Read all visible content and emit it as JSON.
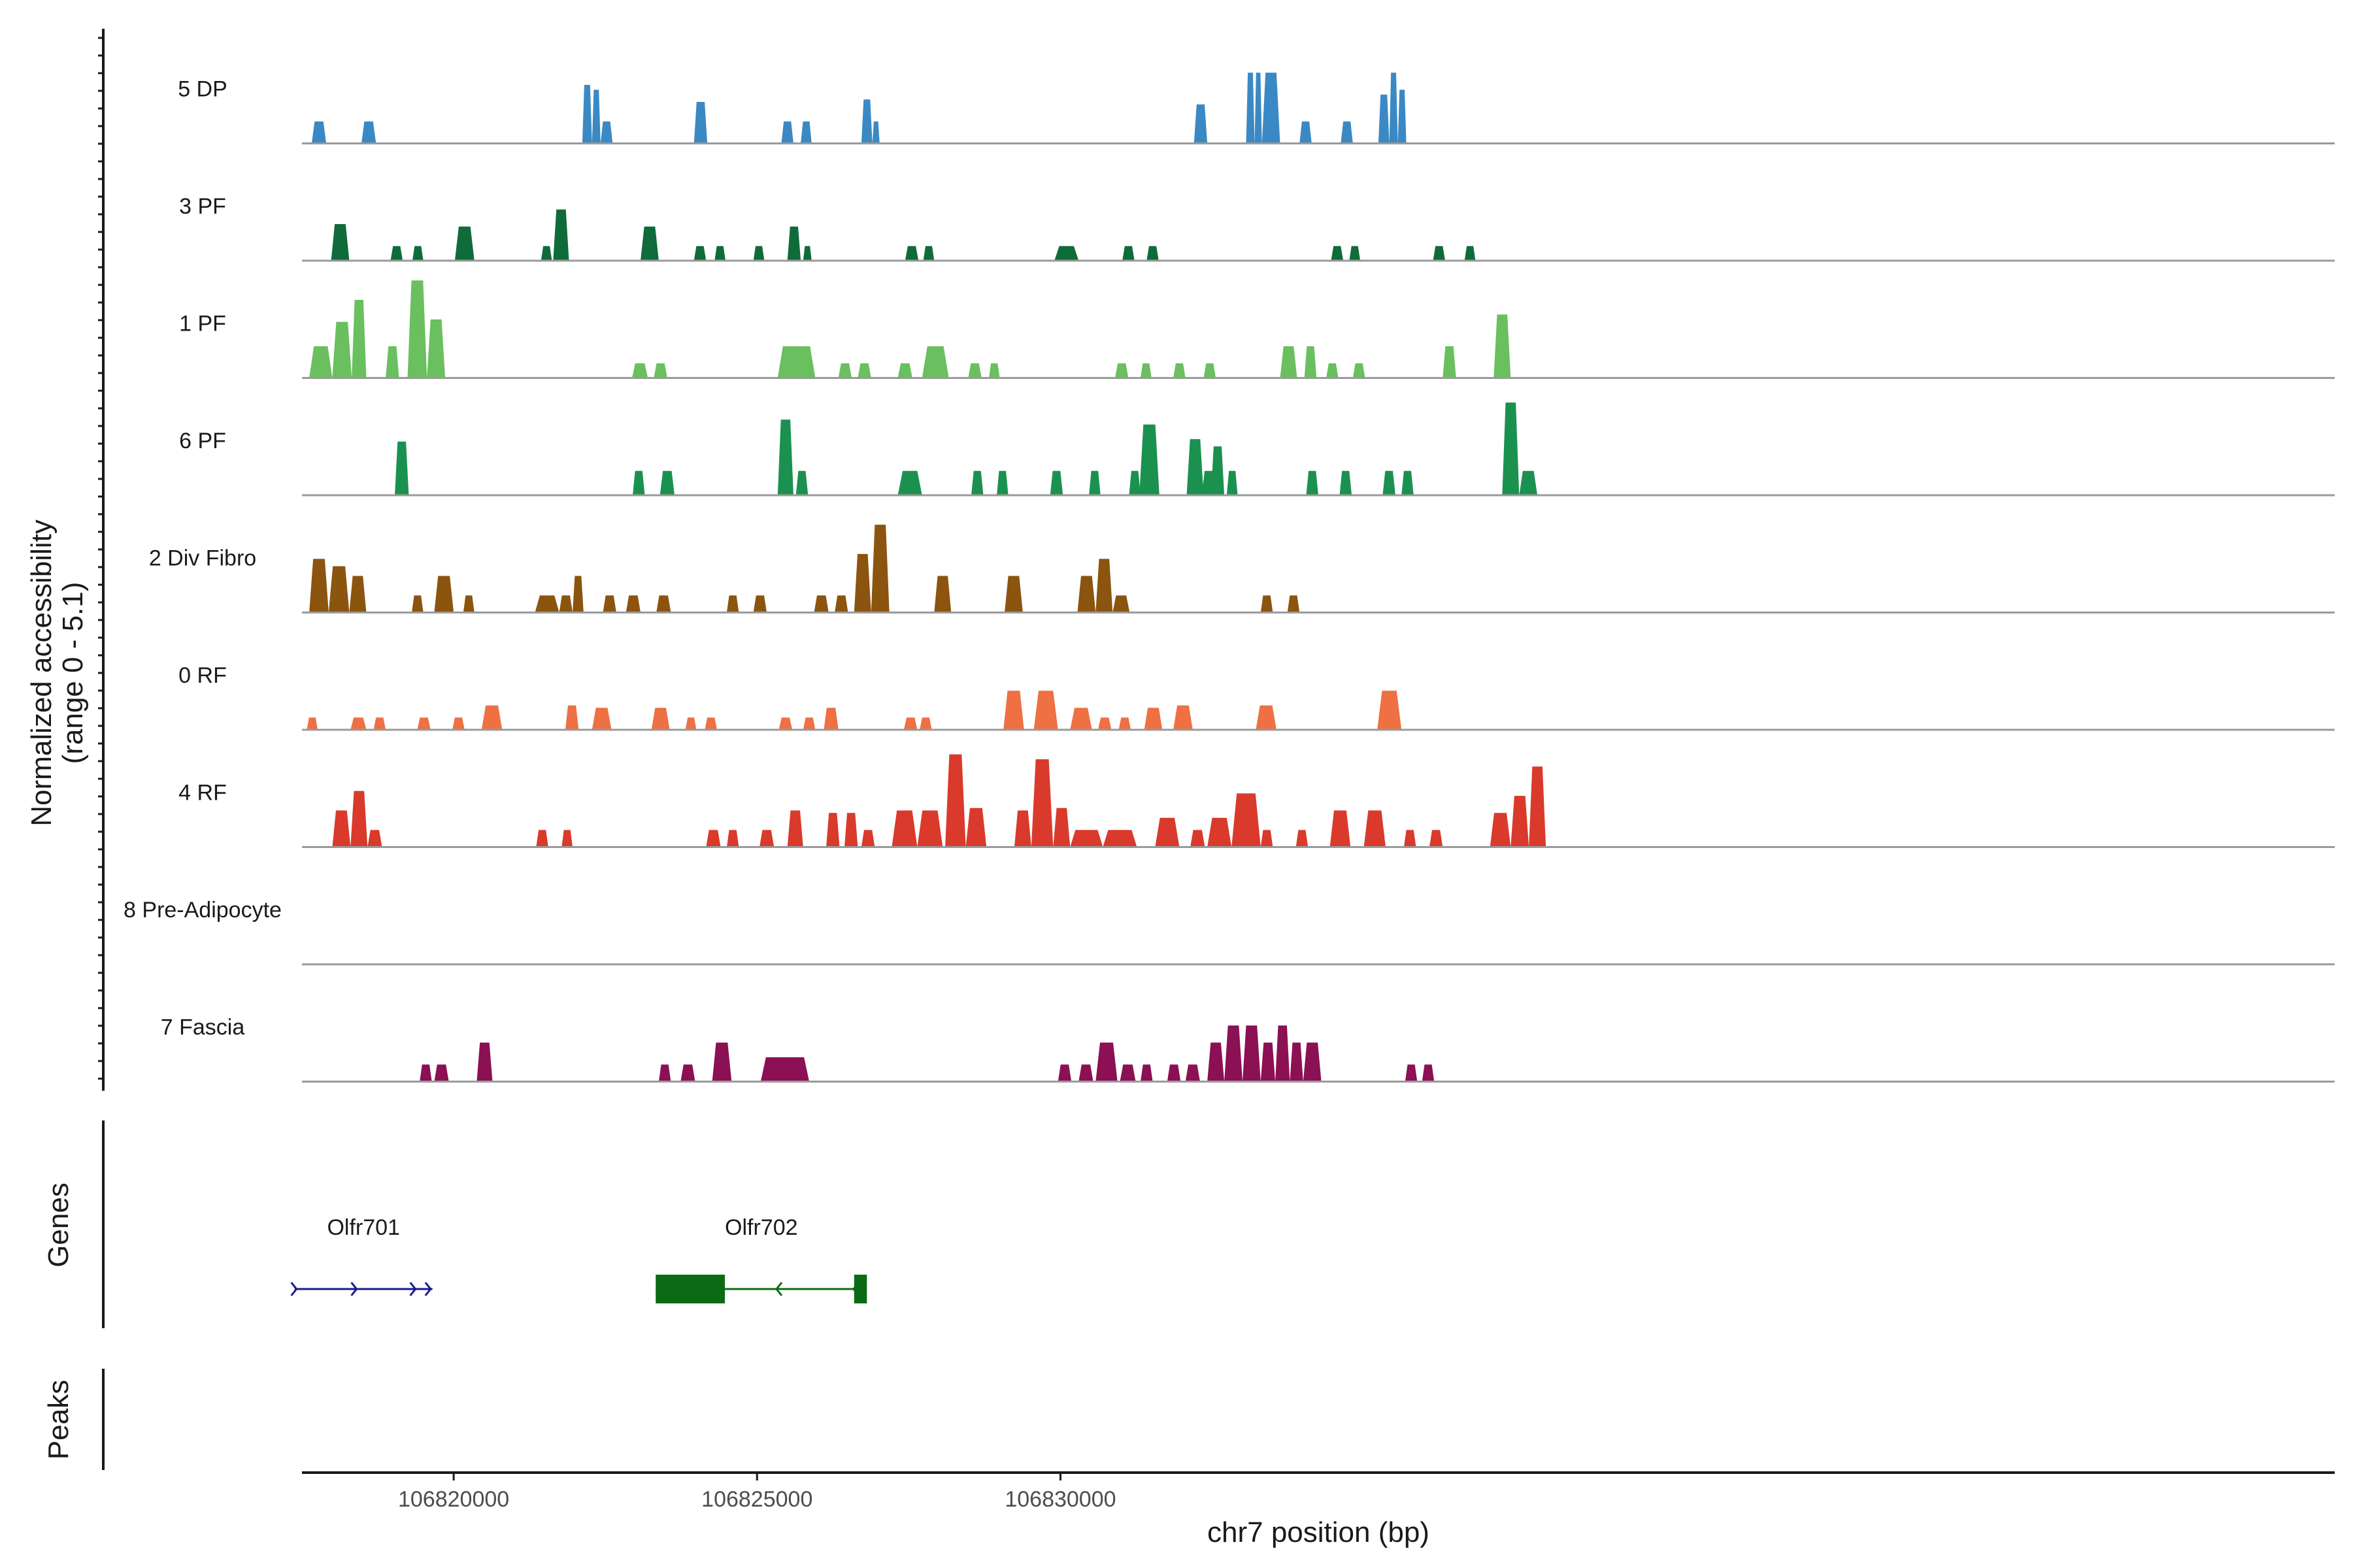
{
  "chart_data": {
    "type": "area",
    "title": "",
    "xlabel": "chr7 position (bp)",
    "ylabel": "Normalized accessibility",
    "ylabel_sub": "(range 0 - 5.1)",
    "xlim": [
      106817500,
      106851000
    ],
    "ylim": [
      0,
      5.1
    ],
    "x_ticks": [
      106820000,
      106825000,
      106830000
    ],
    "x_tick_labels": [
      "106820000",
      "106825000",
      "106830000"
    ],
    "tracks": [
      {
        "name": "5 DP",
        "color": "#3b89c4",
        "peaks": [
          [
            106817660,
            106817900,
            0.9
          ],
          [
            106818480,
            106818720,
            0.9
          ],
          [
            106822120,
            106822280,
            2.4
          ],
          [
            106822280,
            106822420,
            2.2
          ],
          [
            106822420,
            106822620,
            0.9
          ],
          [
            106823960,
            106824180,
            1.7
          ],
          [
            106825400,
            106825600,
            0.9
          ],
          [
            106825720,
            106825900,
            0.9
          ],
          [
            106826720,
            106826900,
            1.8
          ],
          [
            106826900,
            106827020,
            0.9
          ],
          [
            106832200,
            106832420,
            1.6
          ],
          [
            106833060,
            106833200,
            2.9
          ],
          [
            106833200,
            106833320,
            2.9
          ],
          [
            106833320,
            106833620,
            2.9
          ],
          [
            106833940,
            106834140,
            0.9
          ],
          [
            106834620,
            106834820,
            0.9
          ],
          [
            106835240,
            106835420,
            2.0
          ],
          [
            106835420,
            106835560,
            2.9
          ],
          [
            106835560,
            106835700,
            2.2
          ]
        ]
      },
      {
        "name": "3 PF",
        "color": "#0f6b3a",
        "peaks": [
          [
            106817980,
            106818280,
            1.5
          ],
          [
            106818960,
            106819160,
            0.6
          ],
          [
            106819320,
            106819500,
            0.6
          ],
          [
            106820020,
            106820340,
            1.4
          ],
          [
            106821440,
            106821620,
            0.6
          ],
          [
            106821640,
            106821900,
            2.1
          ],
          [
            106823080,
            106823380,
            1.4
          ],
          [
            106823960,
            106824160,
            0.6
          ],
          [
            106824300,
            106824480,
            0.6
          ],
          [
            106824940,
            106825120,
            0.6
          ],
          [
            106825500,
            106825720,
            1.4
          ],
          [
            106825760,
            106825900,
            0.6
          ],
          [
            106827440,
            106827660,
            0.6
          ],
          [
            106827740,
            106827920,
            0.6
          ],
          [
            106829900,
            106830300,
            0.6
          ],
          [
            106831020,
            106831220,
            0.6
          ],
          [
            106831420,
            106831620,
            0.6
          ],
          [
            106834460,
            106834660,
            0.6
          ],
          [
            106834760,
            106834940,
            0.6
          ],
          [
            106836140,
            106836340,
            0.6
          ],
          [
            106836660,
            106836840,
            0.6
          ]
        ]
      },
      {
        "name": "1 PF",
        "color": "#6abf5f",
        "peaks": [
          [
            106817620,
            106818000,
            1.3
          ],
          [
            106818000,
            106818320,
            2.3
          ],
          [
            106818320,
            106818560,
            3.2
          ],
          [
            106818880,
            106819100,
            1.3
          ],
          [
            106819240,
            106819560,
            4.0
          ],
          [
            106819560,
            106819860,
            2.4
          ],
          [
            106822940,
            106823200,
            0.6
          ],
          [
            106823300,
            106823520,
            0.6
          ],
          [
            106825340,
            106825960,
            1.3
          ],
          [
            106826340,
            106826560,
            0.6
          ],
          [
            106826660,
            106826880,
            0.6
          ],
          [
            106827320,
            106827560,
            0.6
          ],
          [
            106827720,
            106828160,
            1.3
          ],
          [
            106828480,
            106828700,
            0.6
          ],
          [
            106828820,
            106829000,
            0.6
          ],
          [
            106830900,
            106831120,
            0.6
          ],
          [
            106831320,
            106831500,
            0.6
          ],
          [
            106831860,
            106832060,
            0.6
          ],
          [
            106832360,
            106832560,
            0.6
          ],
          [
            106833620,
            106833900,
            1.3
          ],
          [
            106834020,
            106834220,
            1.3
          ],
          [
            106834380,
            106834580,
            0.6
          ],
          [
            106834820,
            106835020,
            0.6
          ],
          [
            106836300,
            106836520,
            1.3
          ],
          [
            106837140,
            106837420,
            2.6
          ]
        ]
      },
      {
        "name": "6 PF",
        "color": "#1b9150",
        "peaks": [
          [
            106819030,
            106819260,
            2.2
          ],
          [
            106822950,
            106823150,
            1.0
          ],
          [
            106823400,
            106823640,
            1.0
          ],
          [
            106825340,
            106825600,
            3.1
          ],
          [
            106825640,
            106825840,
            1.0
          ],
          [
            106827320,
            106827720,
            1.0
          ],
          [
            106828530,
            106828730,
            1.0
          ],
          [
            106828950,
            106829140,
            1.0
          ],
          [
            106829830,
            106830040,
            1.0
          ],
          [
            106830470,
            106830660,
            1.0
          ],
          [
            106831130,
            106831320,
            1.0
          ],
          [
            106832330,
            106832560,
            1.0
          ],
          [
            106832740,
            106832920,
            1.0
          ],
          [
            106834050,
            106834250,
            1.0
          ],
          [
            106834600,
            106834800,
            1.0
          ],
          [
            106835310,
            106835520,
            1.0
          ],
          [
            106835620,
            106835820,
            1.0
          ],
          [
            106831300,
            106831630,
            2.9
          ],
          [
            106832080,
            106832360,
            2.3
          ],
          [
            106832480,
            106832700,
            2.0
          ],
          [
            106837280,
            106837560,
            3.8
          ],
          [
            106837560,
            106837860,
            1.0
          ]
        ]
      },
      {
        "name": "2 Div Fibro",
        "color": "#8b540f",
        "peaks": [
          [
            106817620,
            106817940,
            2.2
          ],
          [
            106817940,
            106818280,
            1.9
          ],
          [
            106818280,
            106818560,
            1.5
          ],
          [
            106819310,
            106819500,
            0.7
          ],
          [
            106819680,
            106820000,
            1.5
          ],
          [
            106820160,
            106820340,
            0.7
          ],
          [
            106821340,
            106821740,
            0.7
          ],
          [
            106821740,
            106821960,
            0.7
          ],
          [
            106821960,
            106822140,
            1.5
          ],
          [
            106822460,
            106822680,
            0.7
          ],
          [
            106822840,
            106823080,
            0.7
          ],
          [
            106823340,
            106823580,
            0.7
          ],
          [
            106824500,
            106824700,
            0.7
          ],
          [
            106824940,
            106825160,
            0.7
          ],
          [
            106825940,
            106826180,
            0.7
          ],
          [
            106826280,
            106826500,
            0.7
          ],
          [
            106826600,
            106826880,
            2.4
          ],
          [
            106826880,
            106827180,
            3.6
          ],
          [
            106827920,
            106828200,
            1.5
          ],
          [
            106829080,
            106829380,
            1.5
          ],
          [
            106830280,
            106830580,
            1.5
          ],
          [
            106830580,
            106830860,
            2.2
          ],
          [
            106830860,
            106831140,
            0.7
          ],
          [
            106833300,
            106833500,
            0.7
          ],
          [
            106833740,
            106833940,
            0.7
          ]
        ]
      },
      {
        "name": "0 RF",
        "color": "#ee7043",
        "peaks": [
          [
            106817580,
            106817760,
            0.5
          ],
          [
            106818300,
            106818560,
            0.5
          ],
          [
            106818680,
            106818880,
            0.5
          ],
          [
            106819400,
            106819620,
            0.5
          ],
          [
            106819980,
            106820180,
            0.5
          ],
          [
            106820460,
            106820800,
            1.0
          ],
          [
            106821840,
            106822060,
            1.0
          ],
          [
            106822280,
            106822600,
            0.9
          ],
          [
            106823260,
            106823560,
            0.9
          ],
          [
            106823820,
            106824000,
            0.5
          ],
          [
            106824140,
            106824340,
            0.5
          ],
          [
            106825360,
            106825580,
            0.5
          ],
          [
            106825760,
            106825960,
            0.5
          ],
          [
            106826100,
            106826340,
            0.9
          ],
          [
            106827420,
            106827640,
            0.5
          ],
          [
            106827680,
            106827880,
            0.5
          ],
          [
            106829060,
            106829400,
            1.6
          ],
          [
            106829560,
            106829960,
            1.6
          ],
          [
            106830160,
            106830520,
            0.9
          ],
          [
            106830620,
            106830840,
            0.5
          ],
          [
            106830960,
            106831160,
            0.5
          ],
          [
            106831380,
            106831680,
            0.9
          ],
          [
            106831860,
            106832180,
            1.0
          ],
          [
            106833220,
            106833560,
            1.0
          ],
          [
            106835220,
            106835620,
            1.6
          ]
        ]
      },
      {
        "name": "4 RF",
        "color": "#d93a2b",
        "peaks": [
          [
            106818000,
            106818300,
            1.5
          ],
          [
            106818300,
            106818580,
            2.3
          ],
          [
            106818580,
            106818820,
            0.7
          ],
          [
            106821360,
            106821560,
            0.7
          ],
          [
            106821780,
            106821960,
            0.7
          ],
          [
            106824160,
            106824400,
            0.7
          ],
          [
            106824500,
            106824700,
            0.7
          ],
          [
            106825040,
            106825280,
            0.7
          ],
          [
            106825500,
            106825760,
            1.5
          ],
          [
            106826140,
            106826360,
            1.4
          ],
          [
            106826440,
            106826660,
            1.4
          ],
          [
            106826720,
            106826940,
            0.7
          ],
          [
            106827220,
            106827640,
            1.5
          ],
          [
            106827640,
            106828060,
            1.5
          ],
          [
            106828100,
            106828440,
            3.8
          ],
          [
            106828440,
            106828780,
            1.6
          ],
          [
            106829240,
            106829520,
            1.5
          ],
          [
            106829520,
            106829880,
            3.6
          ],
          [
            106829880,
            106830160,
            1.6
          ],
          [
            106830160,
            106830700,
            0.7
          ],
          [
            106830700,
            106831260,
            0.7
          ],
          [
            106831560,
            106831960,
            1.2
          ],
          [
            106832140,
            106832380,
            0.7
          ],
          [
            106832420,
            106832820,
            1.2
          ],
          [
            106832820,
            106833300,
            2.2
          ],
          [
            106833300,
            106833500,
            0.7
          ],
          [
            106833880,
            106834080,
            0.7
          ],
          [
            106834440,
            106834780,
            1.5
          ],
          [
            106835000,
            106835360,
            1.5
          ],
          [
            106835660,
            106835860,
            0.7
          ],
          [
            106836080,
            106836300,
            0.7
          ],
          [
            106837080,
            106837420,
            1.4
          ],
          [
            106837420,
            106837720,
            2.1
          ],
          [
            106837720,
            106838000,
            3.3
          ]
        ]
      },
      {
        "name": "8 Pre-Adipocyte",
        "color": "#aaaaaa",
        "peaks": []
      },
      {
        "name": "7 Fascia",
        "color": "#8b1054",
        "peaks": [
          [
            106819440,
            106819640,
            0.7
          ],
          [
            106819680,
            106819920,
            0.7
          ],
          [
            106820380,
            106820640,
            1.6
          ],
          [
            106823380,
            106823580,
            0.7
          ],
          [
            106823740,
            106823980,
            0.7
          ],
          [
            106824260,
            106824580,
            1.6
          ],
          [
            106825060,
            106825860,
            1.0
          ],
          [
            106829960,
            106830180,
            0.7
          ],
          [
            106830300,
            106830540,
            0.7
          ],
          [
            106830580,
            106830940,
            1.6
          ],
          [
            106830980,
            106831240,
            0.7
          ],
          [
            106831320,
            106831520,
            0.7
          ],
          [
            106831760,
            106831980,
            0.7
          ],
          [
            106832060,
            106832300,
            0.7
          ],
          [
            106832420,
            106832700,
            1.6
          ],
          [
            106832700,
            106833000,
            2.3
          ],
          [
            106833000,
            106833300,
            2.3
          ],
          [
            106833300,
            106833540,
            1.6
          ],
          [
            106833540,
            106833780,
            2.3
          ],
          [
            106833780,
            106834000,
            1.6
          ],
          [
            106834000,
            106834300,
            1.6
          ],
          [
            106835680,
            106835880,
            0.7
          ],
          [
            106835960,
            106836160,
            0.7
          ]
        ]
      }
    ],
    "genes": [
      {
        "name": "Olfr701",
        "start": 106817380,
        "end": 106819650,
        "strand": "+",
        "color": "#1a1a8c",
        "arrows": [
          106817410,
          106818400,
          106819370,
          106819620
        ]
      },
      {
        "name": "Olfr702",
        "start": 106823330,
        "end": 106826810,
        "strand": "-",
        "color": "#0b6b14",
        "exons": [
          [
            106823330,
            106824470
          ],
          [
            106826600,
            106826810
          ]
        ],
        "arrows": [
          106825320,
          106826590
        ]
      }
    ],
    "panel_labels": {
      "genes": "Genes",
      "peaks": "Peaks"
    }
  }
}
